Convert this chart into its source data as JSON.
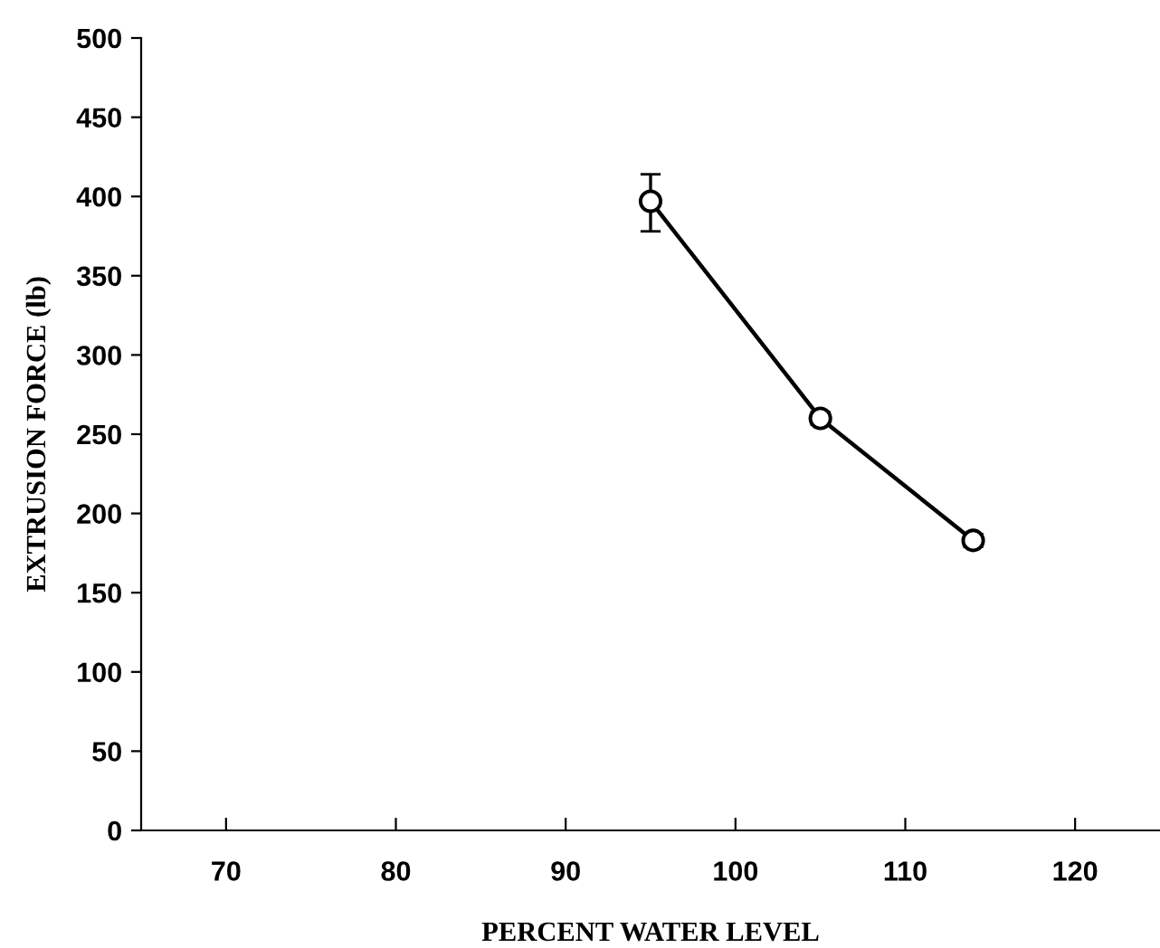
{
  "chart_data": {
    "type": "line",
    "xlabel": "PERCENT WATER LEVEL",
    "ylabel": "EXTRUSION FORCE (lb)",
    "x": [
      95,
      105,
      114
    ],
    "series": [
      {
        "color": "#000000",
        "values": [
          397,
          260,
          183
        ],
        "errors": [
          [
            378,
            414
          ],
          [
            256,
            264
          ],
          [
            179,
            187
          ]
        ]
      }
    ],
    "xlim": [
      65,
      125
    ],
    "xticks": [
      70,
      80,
      90,
      100,
      110,
      120
    ],
    "ylim": [
      0,
      500
    ],
    "yticks": [
      0,
      50,
      100,
      150,
      200,
      250,
      300,
      350,
      400,
      450,
      500
    ],
    "marker": "circle",
    "line_style": "solid",
    "grid": false
  }
}
